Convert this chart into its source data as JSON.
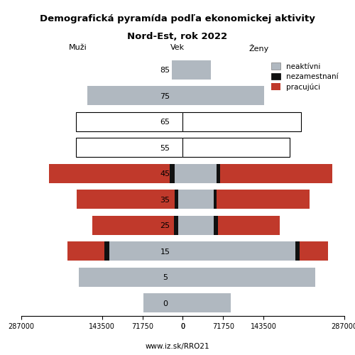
{
  "title_line1": "Demografická pyramída podľa ekonomickej aktivity",
  "title_line2": "Nord-Est, rok 2022",
  "xlabel_left": "Muži",
  "xlabel_right": "Ženy",
  "xlabel_center": "Vek",
  "ylabel_url": "www.iz.sk/RRO21",
  "age_labels": [
    0,
    5,
    15,
    25,
    35,
    45,
    55,
    65,
    75,
    85
  ],
  "xlim": 287000,
  "colors": {
    "neaktivni": "#b0b8c0",
    "nezamestnani": "#111111",
    "pracujuci": "#c0392b",
    "outlined_face": "#ffffff",
    "outlined_edge": "#000000"
  },
  "males": {
    "neaktivni": [
      70000,
      185000,
      130000,
      8000,
      8000,
      15000,
      190000,
      190000,
      170000,
      20000
    ],
    "nezamestnani": [
      0,
      0,
      10000,
      8000,
      6000,
      8000,
      0,
      0,
      0,
      0
    ],
    "pracujuci": [
      0,
      0,
      65000,
      145000,
      175000,
      215000,
      0,
      0,
      0,
      0
    ]
  },
  "females": {
    "neaktivni": [
      85000,
      235000,
      200000,
      55000,
      55000,
      60000,
      190000,
      210000,
      145000,
      50000
    ],
    "nezamestnani": [
      0,
      0,
      8000,
      7000,
      5000,
      6000,
      0,
      0,
      0,
      0
    ],
    "pracujuci": [
      0,
      0,
      50000,
      110000,
      165000,
      200000,
      0,
      0,
      0,
      0
    ]
  },
  "outlined_indices": [
    6,
    7
  ],
  "bar_height": 0.75,
  "fig_width": 5.0,
  "fig_height": 5.0,
  "dpi": 100
}
